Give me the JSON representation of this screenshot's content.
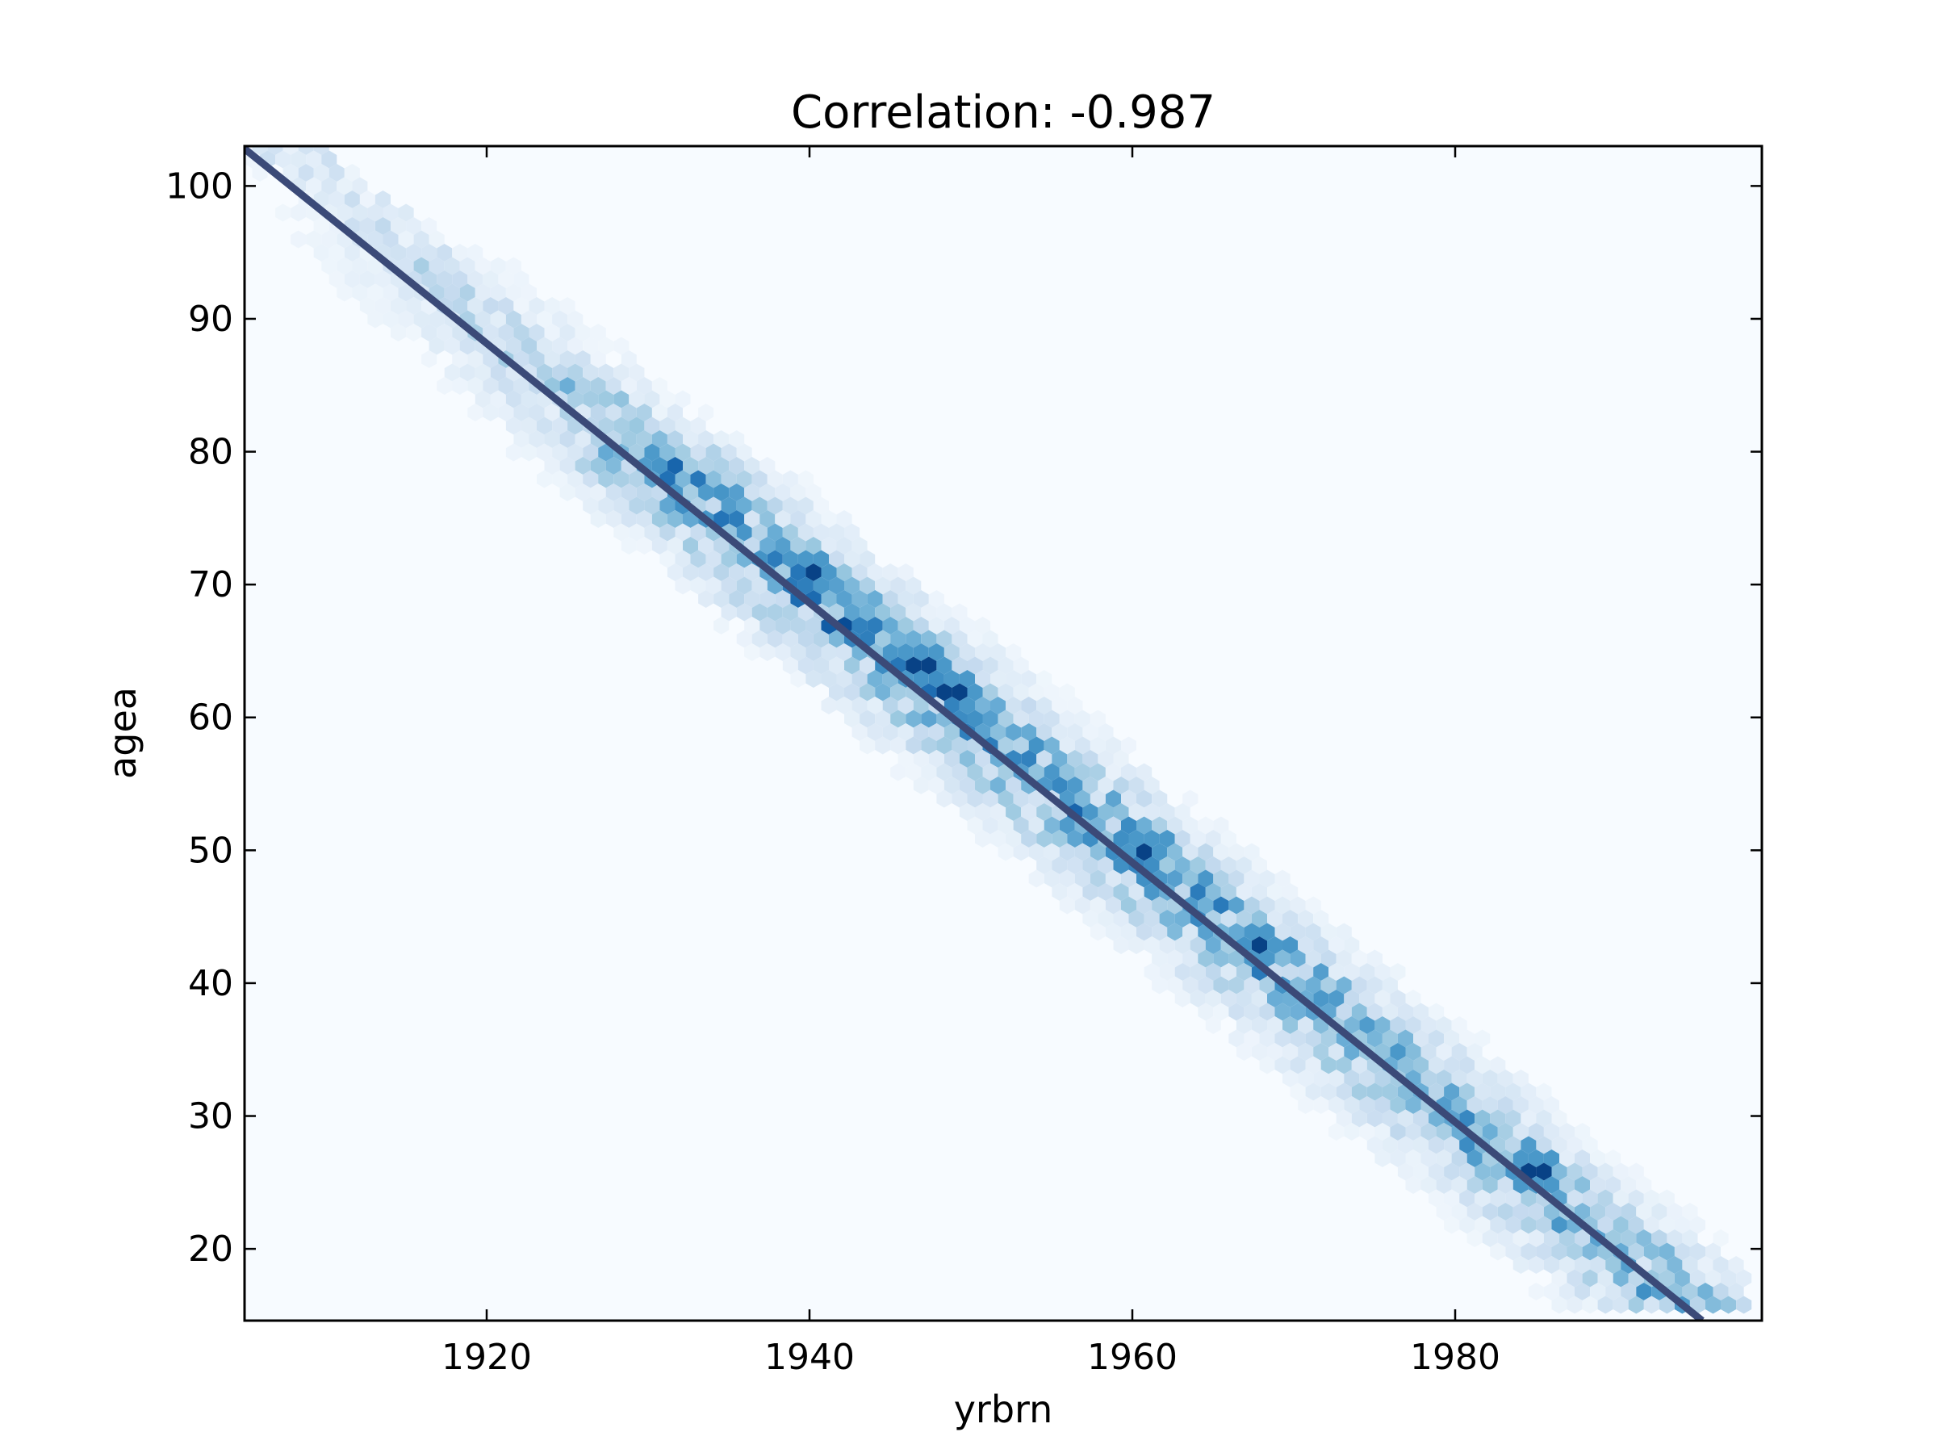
{
  "chart_data": {
    "type": "hexbin",
    "title": "Correlation: -0.987",
    "xlabel": "yrbrn",
    "ylabel": "agea",
    "xlim": [
      1905,
      1999
    ],
    "ylim": [
      14.6,
      103
    ],
    "xticks": [
      1920,
      1940,
      1960,
      1980
    ],
    "yticks": [
      20,
      30,
      40,
      50,
      60,
      70,
      80,
      90,
      100
    ],
    "grid": false,
    "legend": "none",
    "colormap": "Blues",
    "background_color": "#f7fbff",
    "series": [
      {
        "kind": "hexbin-density",
        "relation": "agea ≈ 2009 − yrbrn",
        "yrbrn_range": [
          1905,
          1998
        ],
        "agea_range": [
          15,
          103
        ],
        "band_width_years": 4,
        "peak_cells": [
          {
            "x": 1940,
            "y": 71
          },
          {
            "x": 1947,
            "y": 64
          },
          {
            "x": 1949,
            "y": 62
          },
          {
            "x": 1961,
            "y": 50
          },
          {
            "x": 1968,
            "y": 43
          },
          {
            "x": 1985,
            "y": 26
          }
        ]
      },
      {
        "kind": "line",
        "color": "#3b4a78",
        "x": [
          1905,
          1995.3
        ],
        "y": [
          102.8,
          14.6
        ]
      }
    ]
  }
}
